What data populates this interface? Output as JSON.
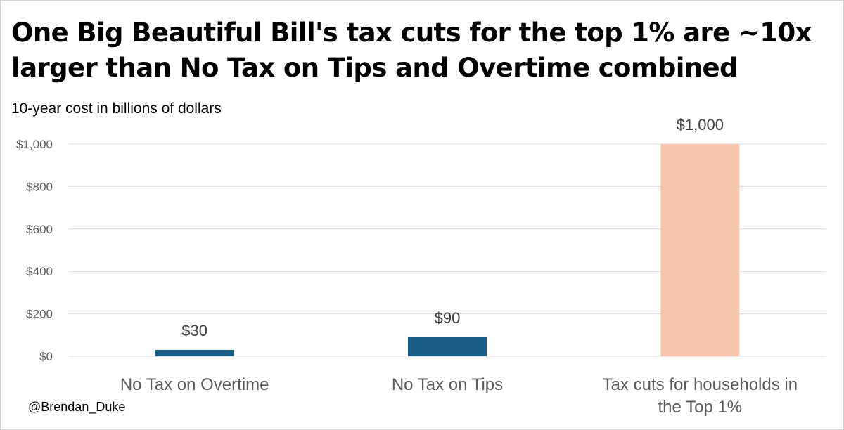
{
  "chart_data": {
    "type": "bar",
    "title": "One Big Beautiful Bill's tax cuts for the top 1% are ~10x larger than No Tax on Tips and Overtime combined",
    "subtitle": "10-year cost in billions of dollars",
    "categories": [
      [
        "No Tax on Overtime"
      ],
      [
        "No Tax on Tips"
      ],
      [
        "Tax cuts for households in",
        "the Top 1%"
      ]
    ],
    "values": [
      30,
      90,
      1000
    ],
    "data_labels": [
      "$30",
      "$90",
      "$1,000"
    ],
    "bar_colors": [
      "#1b5e86",
      "#1b5e86",
      "#f5c6ab"
    ],
    "ylim": [
      0,
      1000
    ],
    "yticks": [
      0,
      200,
      400,
      600,
      800,
      1000
    ],
    "ytick_labels": [
      "$0",
      "$200",
      "$400",
      "$600",
      "$800",
      "$1,000"
    ],
    "xlabel": "",
    "ylabel": "",
    "grid": true,
    "legend": "none"
  },
  "credit": "@Brendan_Duke"
}
